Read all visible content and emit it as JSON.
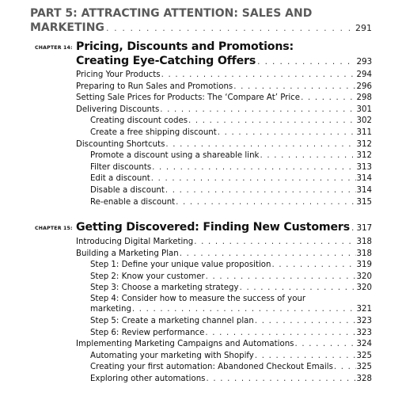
{
  "part": {
    "line1": "PART 5: ATTRACTING ATTENTION: SALES AND",
    "line2": "MARKETING",
    "page": "291"
  },
  "chapters": [
    {
      "label": "CHAPTER 14:",
      "title_line1": "Pricing, Discounts and Promotions:",
      "title_line2": "Creating Eye-Catching Offers",
      "page": "293",
      "entries": [
        {
          "text": "Pricing Your Products",
          "page": "294",
          "level": 1
        },
        {
          "text": "Preparing to Run Sales and Promotions",
          "page": "296",
          "level": 1
        },
        {
          "text": "Setting Sale Prices for Products: The ‘Compare At’ Price",
          "page": "298",
          "level": 1
        },
        {
          "text": "Delivering Discounts",
          "page": "301",
          "level": 1
        },
        {
          "text": "Creating discount codes",
          "page": "302",
          "level": 2
        },
        {
          "text": "Create a free shipping discount",
          "page": "311",
          "level": 2
        },
        {
          "text": "Discounting Shortcuts",
          "page": "312",
          "level": 1
        },
        {
          "text": "Promote a discount using a shareable link",
          "page": "312",
          "level": 2
        },
        {
          "text": "Filter discounts",
          "page": "313",
          "level": 2
        },
        {
          "text": "Edit a discount",
          "page": "314",
          "level": 2
        },
        {
          "text": "Disable a discount",
          "page": "314",
          "level": 2
        },
        {
          "text": "Re-enable a discount",
          "page": "315",
          "level": 2
        }
      ]
    },
    {
      "label": "CHAPTER 15:",
      "title_line1": "Getting Discovered: Finding New Customers",
      "page": "317",
      "entries": [
        {
          "text": "Introducing Digital Marketing",
          "page": "318",
          "level": 1
        },
        {
          "text": "Building a Marketing Plan",
          "page": "318",
          "level": 1
        },
        {
          "text": "Step 1: Define your unique value proposition",
          "page": "319",
          "level": 2
        },
        {
          "text": "Step 2: Know your customer",
          "page": "320",
          "level": 2
        },
        {
          "text": "Step 3: Choose a marketing strategy",
          "page": "320",
          "level": 2
        },
        {
          "text": "Step 4: Consider how to measure the success of your",
          "text2": "marketing",
          "page": "321",
          "level": 2
        },
        {
          "text": "Step 5: Create a marketing channel plan",
          "page": "323",
          "level": 2
        },
        {
          "text": "Step 6: Review performance",
          "page": "323",
          "level": 2
        },
        {
          "text": "Implementing Marketing Campaigns and Automations",
          "page": "324",
          "level": 1
        },
        {
          "text": "Automating your marketing with Shopify",
          "page": "325",
          "level": 2
        },
        {
          "text": "Creating your first automation: Abandoned Checkout Emails",
          "page": "325",
          "level": 2
        },
        {
          "text": "Exploring other automations",
          "page": "328",
          "level": 2
        }
      ]
    }
  ]
}
